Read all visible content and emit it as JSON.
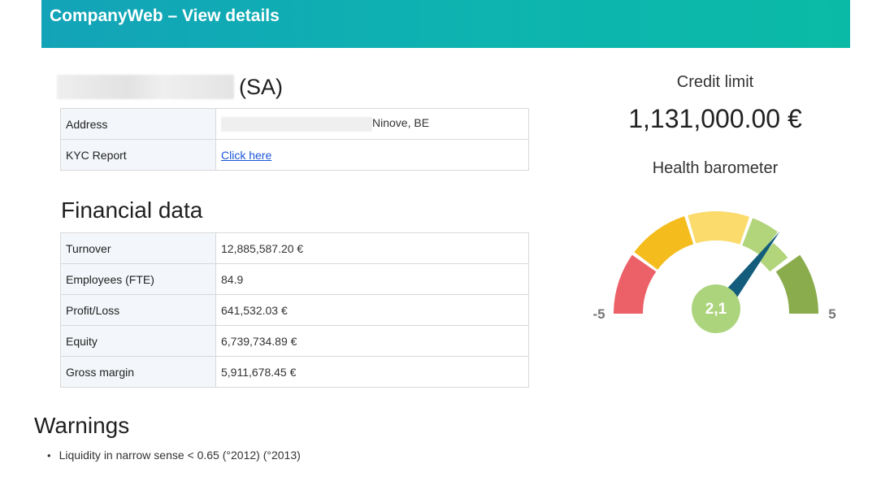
{
  "header": {
    "title": "CompanyWeb – View details"
  },
  "company": {
    "legal_form": "(SA)",
    "details": [
      {
        "label": "Address",
        "value": "Ninove, BE"
      },
      {
        "label": "KYC Report",
        "link_text": "Click here"
      }
    ]
  },
  "financial": {
    "title": "Financial data",
    "rows": [
      {
        "label": "Turnover",
        "value": "12,885,587.20 €"
      },
      {
        "label": "Employees (FTE)",
        "value": "84.9"
      },
      {
        "label": "Profit/Loss",
        "value": "641,532.03 €"
      },
      {
        "label": "Equity",
        "value": "6,739,734.89 €"
      },
      {
        "label": "Gross margin",
        "value": "5,911,678.45 €"
      }
    ]
  },
  "warnings": {
    "title": "Warnings",
    "items": [
      "Liquidity in narrow sense < 0.65 (°2012) (°2013)"
    ]
  },
  "credit": {
    "title": "Credit limit",
    "value": "1,131,000.00 €"
  },
  "barometer": {
    "title": "Health barometer",
    "min_label": "-5",
    "max_label": "5",
    "min": -5,
    "max": 5,
    "value": 2.1,
    "value_label": "2,1",
    "colors": {
      "band_1": "#ec6068",
      "band_2": "#f4bc1c",
      "band_3": "#fbdb6c",
      "band_4": "#b2d47a",
      "band_5": "#8aac4c",
      "needle": "#135c7c",
      "value_circle": "#acd47c"
    }
  }
}
